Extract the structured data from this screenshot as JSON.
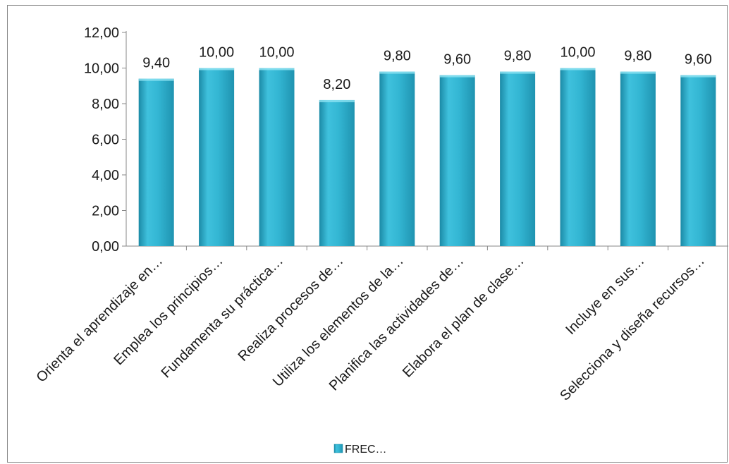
{
  "chart_data": {
    "type": "bar",
    "categories": [
      "Orienta el aprendizaje en…",
      "Emplea los principios…",
      "Fundamenta su práctica…",
      "Realiza procesos de…",
      "Utiliza los  elementos de la…",
      "Planifica las actividades de…",
      "Elabora el plan de clase…",
      "",
      "Incluye en sus…",
      "Selecciona y diseña recursos…"
    ],
    "values": [
      9.4,
      10.0,
      10.0,
      8.2,
      9.8,
      9.6,
      9.8,
      10.0,
      9.8,
      9.6
    ],
    "data_labels": [
      "9,40",
      "10,00",
      "10,00",
      "8,20",
      "9,80",
      "9,60",
      "9,80",
      "10,00",
      "9,80",
      "9,60"
    ],
    "yticks": [
      0,
      2,
      4,
      6,
      8,
      10,
      12
    ],
    "ytick_labels": [
      "0,00",
      "2,00",
      "4,00",
      "6,00",
      "8,00",
      "10,00",
      "12,00"
    ],
    "ylim": [
      0,
      12
    ],
    "grid": false,
    "legend": {
      "placement": "bottom",
      "entries": [
        "FREC…"
      ]
    },
    "bar_color": "#2aaac9"
  }
}
